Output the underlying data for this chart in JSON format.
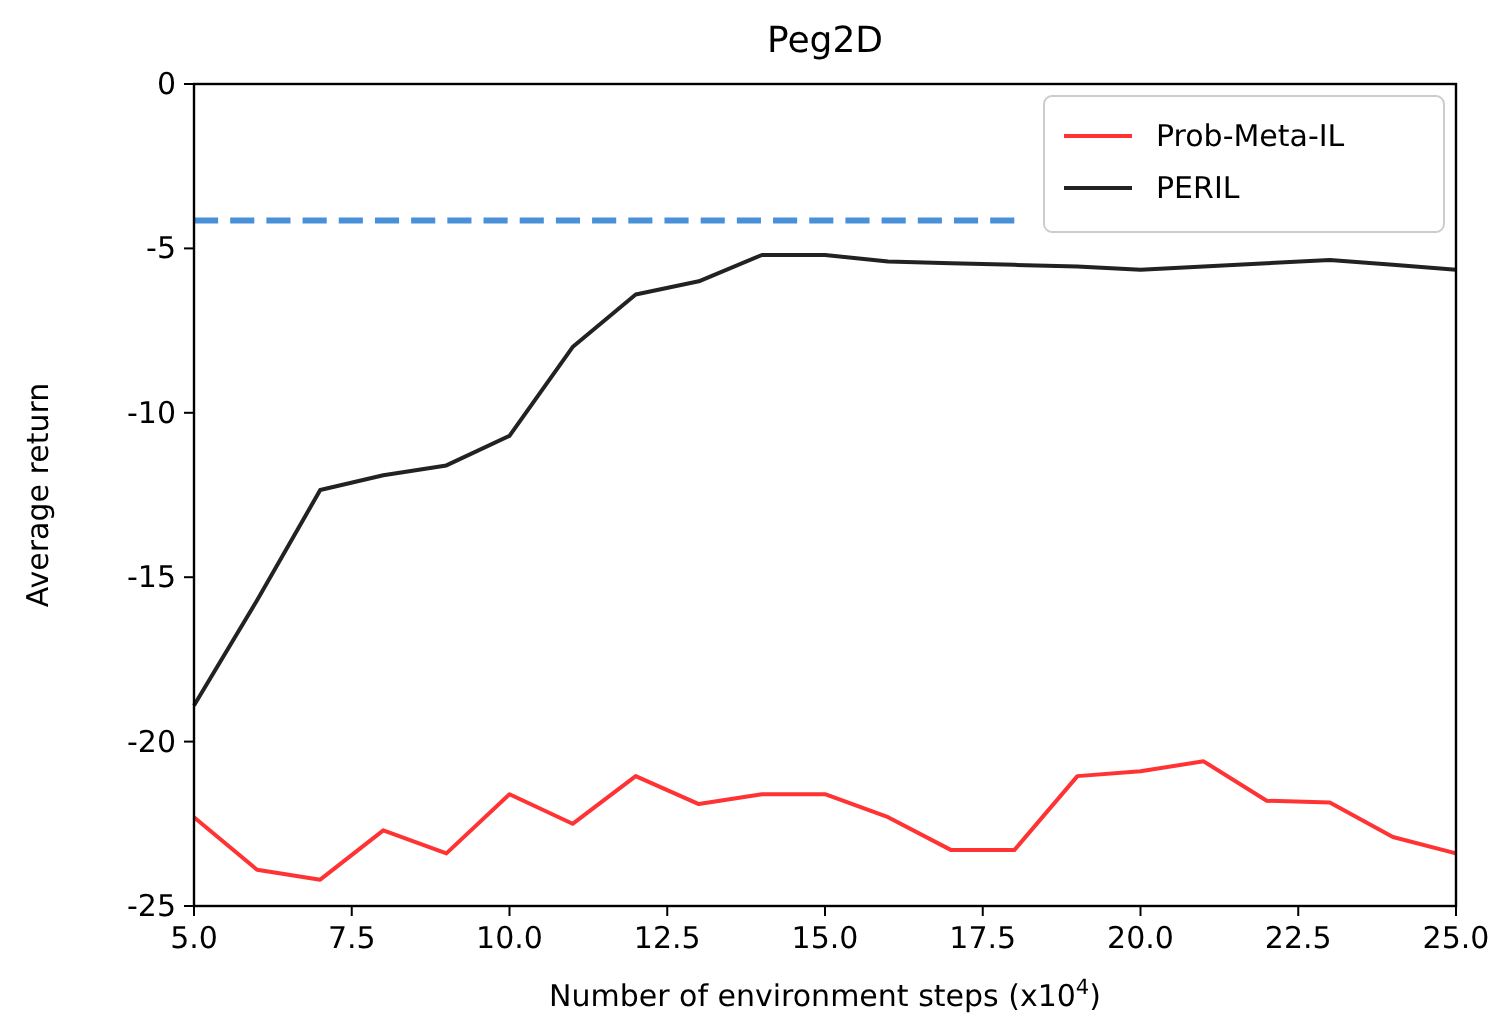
{
  "chart_data": {
    "type": "line",
    "title": "Peg2D",
    "xlabel": "Number of environment steps (x10$^{4}$)",
    "ylabel": "Average return",
    "xlim": [
      5,
      25
    ],
    "ylim": [
      -25,
      0
    ],
    "xticks": [
      {
        "value": 5,
        "label": "5.0"
      },
      {
        "value": 7.5,
        "label": "7.5"
      },
      {
        "value": 10,
        "label": "10.0"
      },
      {
        "value": 12.5,
        "label": "12.5"
      },
      {
        "value": 15,
        "label": "15.0"
      },
      {
        "value": 17.5,
        "label": "17.5"
      },
      {
        "value": 20,
        "label": "20.0"
      },
      {
        "value": 22.5,
        "label": "22.5"
      },
      {
        "value": 25,
        "label": "25.0"
      }
    ],
    "yticks": [
      -25,
      -20,
      -15,
      -10,
      -5,
      0
    ],
    "legend": "top right",
    "grid": false,
    "x": [
      5,
      6,
      7,
      8,
      9,
      10,
      11,
      12,
      13,
      14,
      15,
      16,
      17,
      18,
      19,
      20,
      21,
      22,
      23,
      24,
      25
    ],
    "series": [
      {
        "name": "Prob-Meta-IL",
        "color": "#ff3333",
        "values": [
          -22.3,
          -23.9,
          -24.2,
          -22.7,
          -23.4,
          -21.6,
          -22.5,
          -21.05,
          -21.9,
          -21.6,
          -21.6,
          -22.3,
          -23.3,
          -23.3,
          -21.05,
          -20.9,
          -20.6,
          -21.8,
          -21.85,
          -22.9,
          -23.4
        ]
      },
      {
        "name": "PERIL",
        "color": "#222222",
        "values": [
          -18.9,
          -15.7,
          -12.35,
          -11.9,
          -11.6,
          -10.7,
          -8.0,
          -6.4,
          -6.0,
          -5.2,
          -5.2,
          -5.4,
          -5.45,
          -5.5,
          -5.55,
          -5.65,
          -5.55,
          -5.45,
          -5.35,
          -5.5,
          -5.65
        ]
      },
      {
        "type": "line",
        "color": "#4a90d9",
        "line_style": "dashed",
        "x": [
          5,
          18
        ],
        "values": [
          -4.15,
          -4.15
        ]
      }
    ]
  }
}
